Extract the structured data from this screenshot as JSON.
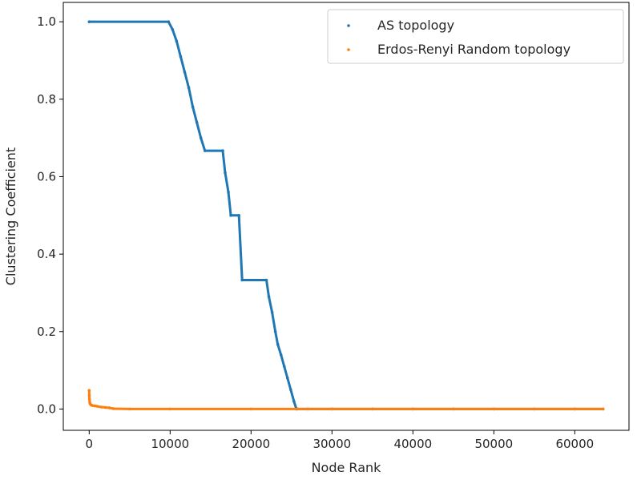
{
  "chart_data": {
    "type": "scatter",
    "title": "",
    "xlabel": "Node Rank",
    "ylabel": "Clustering Coefficient",
    "xlim": [
      -3200,
      66700
    ],
    "ylim": [
      -0.055,
      1.05
    ],
    "xticks": [
      0,
      10000,
      20000,
      30000,
      40000,
      50000,
      60000
    ],
    "xtick_labels": [
      "0",
      "10000",
      "20000",
      "30000",
      "40000",
      "50000",
      "60000"
    ],
    "yticks": [
      0.0,
      0.2,
      0.4,
      0.6,
      0.8,
      1.0
    ],
    "ytick_labels": [
      "0.0",
      "0.2",
      "0.4",
      "0.6",
      "0.8",
      "1.0"
    ],
    "grid": false,
    "legend_position": "top-right",
    "series": [
      {
        "name": "AS topology",
        "color": "#1f77b4",
        "x": [
          0,
          9800,
          10300,
          10800,
          11300,
          11800,
          12300,
          12800,
          13300,
          13800,
          14300,
          16500,
          16800,
          17200,
          17500,
          18500,
          18900,
          21900,
          22200,
          22600,
          23000,
          23300,
          23700,
          24100,
          24500,
          24900,
          25300,
          25600,
          25700,
          27000,
          30000,
          35000,
          40000,
          45000,
          50000,
          55000,
          60000,
          63500
        ],
        "y": [
          1.0,
          1.0,
          0.98,
          0.95,
          0.91,
          0.87,
          0.83,
          0.78,
          0.74,
          0.7,
          0.667,
          0.667,
          0.61,
          0.56,
          0.5,
          0.5,
          0.333,
          0.333,
          0.29,
          0.25,
          0.2,
          0.167,
          0.14,
          0.11,
          0.08,
          0.05,
          0.02,
          0.0,
          0.0,
          0.0,
          0.0,
          0.0,
          0.0,
          0.0,
          0.0,
          0.0,
          0.0,
          0.0
        ]
      },
      {
        "name": "Erdos-Renyi Random topology",
        "color": "#ff7f0e",
        "x": [
          0,
          10,
          30,
          60,
          100,
          200,
          400,
          700,
          1000,
          1500,
          2000,
          2500,
          3000,
          5000,
          10000,
          20000,
          30000,
          40000,
          50000,
          60000,
          63500
        ],
        "y": [
          0.048,
          0.035,
          0.025,
          0.018,
          0.014,
          0.011,
          0.009,
          0.008,
          0.007,
          0.005,
          0.004,
          0.003,
          0.001,
          0.0,
          0.0,
          0.0,
          0.0,
          0.0,
          0.0,
          0.0,
          0.0
        ]
      }
    ]
  }
}
